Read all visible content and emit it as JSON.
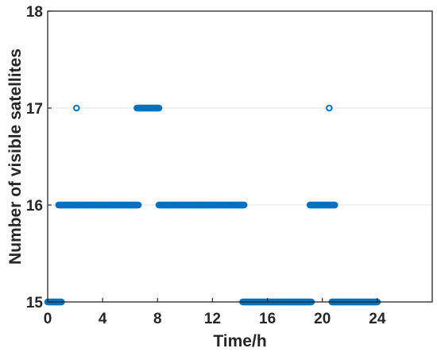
{
  "chart_data": {
    "type": "scatter",
    "xlabel": "Time/h",
    "ylabel": "Number of visible satellites",
    "xlim": [
      0,
      28
    ],
    "ylim": [
      15,
      18
    ],
    "xticks": [
      0,
      4,
      8,
      12,
      16,
      20,
      24
    ],
    "yticks": [
      15,
      16,
      17,
      18
    ],
    "grid": "horizontal",
    "marker": "open-circle",
    "color": "#0072BD",
    "segments": [
      {
        "x_start": 0.0,
        "x_end": 1.0,
        "y": 15
      },
      {
        "x_start": 0.8,
        "x_end": 6.6,
        "y": 16
      },
      {
        "x_start": 2.1,
        "x_end": 2.1,
        "y": 17
      },
      {
        "x_start": 6.5,
        "x_end": 8.1,
        "y": 17
      },
      {
        "x_start": 8.1,
        "x_end": 14.3,
        "y": 16
      },
      {
        "x_start": 14.2,
        "x_end": 19.2,
        "y": 15
      },
      {
        "x_start": 19.1,
        "x_end": 20.9,
        "y": 16
      },
      {
        "x_start": 20.5,
        "x_end": 20.5,
        "y": 17
      },
      {
        "x_start": 20.7,
        "x_end": 24.0,
        "y": 15
      }
    ],
    "sample_step": 0.05
  }
}
